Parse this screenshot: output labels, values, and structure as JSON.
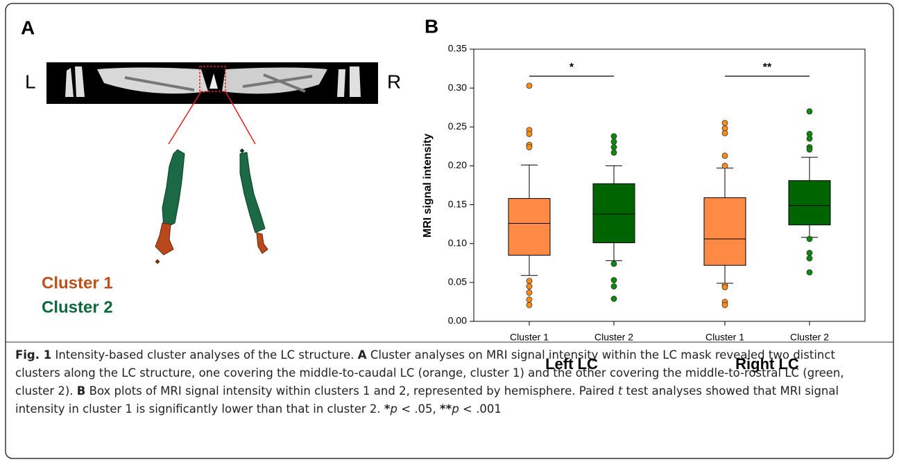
{
  "panel_a": {
    "label": "A",
    "left_label": "L",
    "right_label": "R",
    "legend": [
      "Cluster 1",
      "Cluster 2"
    ]
  },
  "chart_data": {
    "type": "box",
    "panel_label": "B",
    "ylabel": "MRI signal intensity",
    "ylim": [
      0,
      0.35
    ],
    "yticks": [
      {
        "value": 0,
        "label": "0.00"
      },
      0.05,
      {
        "value": 0.1,
        "label": "0.10"
      },
      0.15,
      {
        "value": 0.2,
        "label": "0.20"
      },
      0.25,
      {
        "value": 0.3,
        "label": "0.30"
      },
      0.35
    ],
    "groups": [
      {
        "name": "Left LC",
        "significance": "*",
        "boxes": [
          {
            "name": "Cluster 1",
            "color": "#ff8a45",
            "whisker_low": 0.059,
            "q1": 0.085,
            "median": 0.126,
            "q3": 0.158,
            "whisker_high": 0.201,
            "outliers": [
              0.303,
              0.246,
              0.241,
              0.227,
              0.224,
              0.052,
              0.045,
              0.037,
              0.028,
              0.021
            ]
          },
          {
            "name": "Cluster 2",
            "color": "#006400",
            "whisker_low": 0.078,
            "q1": 0.101,
            "median": 0.138,
            "q3": 0.177,
            "whisker_high": 0.2,
            "outliers": [
              0.238,
              0.231,
              0.224,
              0.217,
              0.074,
              0.053,
              0.045,
              0.029
            ]
          }
        ]
      },
      {
        "name": "Right LC",
        "significance": "**",
        "boxes": [
          {
            "name": "Cluster 1",
            "color": "#ff8a45",
            "whisker_low": 0.049,
            "q1": 0.072,
            "median": 0.106,
            "q3": 0.159,
            "whisker_high": 0.197,
            "outliers": [
              0.255,
              0.248,
              0.242,
              0.213,
              0.2,
              0.046,
              0.044,
              0.025,
              0.021
            ]
          },
          {
            "name": "Cluster 2",
            "color": "#006400",
            "whisker_low": 0.108,
            "q1": 0.124,
            "median": 0.149,
            "q3": 0.181,
            "whisker_high": 0.211,
            "outliers": [
              0.27,
              0.241,
              0.235,
              0.224,
              0.221,
              0.106,
              0.088,
              0.081,
              0.063
            ]
          }
        ]
      }
    ]
  },
  "caption": [
    "Fig. 1",
    " Intensity-based cluster analyses of the LC structure. ",
    "A",
    " Cluster analyses on MRI signal intensity within the LC mask revealed two distinct clusters along the LC structure, one covering the middle-to-caudal LC (orange, cluster 1) and the other covering the middle-to-rostral LC (green, cluster 2). ",
    "B",
    " Box plots of MRI signal intensity within clusters 1 and 2, represented by hemisphere. Paired ",
    "t",
    " test analyses showed that MRI signal intensity in cluster 1 is significantly lower than that in cluster 2. ",
    "*",
    "p",
    " < .05, ",
    "**",
    "p",
    " < .001"
  ]
}
